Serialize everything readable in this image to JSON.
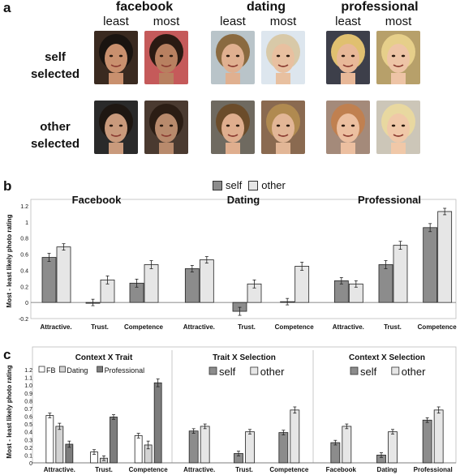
{
  "panel_a": {
    "letter": "a",
    "contexts": [
      "facebook",
      "dating",
      "professional"
    ],
    "col_labels": [
      "least",
      "most"
    ],
    "rows": [
      {
        "label_line1": "self",
        "label_line2": "selected"
      },
      {
        "label_line1": "other",
        "label_line2": "selected"
      }
    ]
  },
  "panel_b": {
    "letter": "b",
    "legend": [
      "self",
      "other"
    ]
  },
  "panel_c": {
    "letter": "c"
  },
  "colors": {
    "self": "#8c8c8c",
    "other": "#e6e6e6",
    "fb": "#ffffff",
    "dating": "#d3d3d3",
    "professional": "#7d7d7d"
  },
  "chart_data": [
    {
      "type": "bar",
      "panel": "b",
      "ylabel": "Most - least likely photo rating",
      "ylim": [
        -0.2,
        1.2
      ],
      "yticks": [
        "-0.2",
        "0",
        "0.2",
        "0.4",
        "0.6",
        "0.8",
        "1",
        "1.2"
      ],
      "groups": [
        {
          "title": "Facebook",
          "categories": [
            "Attractive.",
            "Trust.",
            "Competence"
          ],
          "series": [
            {
              "name": "self",
              "values": [
                0.56,
                0.0,
                0.24
              ],
              "err": [
                0.05,
                0.04,
                0.05
              ]
            },
            {
              "name": "other",
              "values": [
                0.69,
                0.28,
                0.47
              ],
              "err": [
                0.04,
                0.05,
                0.05
              ]
            }
          ]
        },
        {
          "title": "Dating",
          "categories": [
            "Attractive.",
            "Trust.",
            "Competence"
          ],
          "series": [
            {
              "name": "self",
              "values": [
                0.42,
                -0.11,
                0.01
              ],
              "err": [
                0.04,
                0.05,
                0.04
              ]
            },
            {
              "name": "other",
              "values": [
                0.53,
                0.23,
                0.45
              ],
              "err": [
                0.04,
                0.05,
                0.05
              ]
            }
          ]
        },
        {
          "title": "Professional",
          "categories": [
            "Attractive.",
            "Trust.",
            "Competence"
          ],
          "series": [
            {
              "name": "self",
              "values": [
                0.27,
                0.47,
                0.93
              ],
              "err": [
                0.04,
                0.05,
                0.05
              ]
            },
            {
              "name": "other",
              "values": [
                0.23,
                0.71,
                1.13
              ],
              "err": [
                0.04,
                0.05,
                0.04
              ]
            }
          ]
        }
      ]
    },
    {
      "type": "bar",
      "panel": "c",
      "ylabel": "Most - least likely photo rating",
      "ylim": [
        0,
        1.2
      ],
      "yticks": [
        "0",
        "0.1",
        "0.2",
        "0.3",
        "0.4",
        "0.5",
        "0.6",
        "0.7",
        "0.8",
        "0.9",
        "1.0",
        "1.1",
        "1.2"
      ],
      "groups": [
        {
          "title": "Context X Trait",
          "legend": [
            "FB",
            "Dating",
            "Professional"
          ],
          "categories": [
            "Attractive.",
            "Trust.",
            "Competence"
          ],
          "series": [
            {
              "name": "FB",
              "values": [
                0.61,
                0.14,
                0.35
              ],
              "err": [
                0.03,
                0.03,
                0.03
              ]
            },
            {
              "name": "Dating",
              "values": [
                0.47,
                0.06,
                0.23
              ],
              "err": [
                0.04,
                0.03,
                0.05
              ]
            },
            {
              "name": "Professional",
              "values": [
                0.24,
                0.59,
                1.03
              ],
              "err": [
                0.04,
                0.03,
                0.05
              ]
            }
          ]
        },
        {
          "title": "Trait X Selection",
          "legend": [
            "self",
            "other"
          ],
          "categories": [
            "Attractive.",
            "Trust.",
            "Competence"
          ],
          "series": [
            {
              "name": "self",
              "values": [
                0.41,
                0.12,
                0.39
              ],
              "err": [
                0.03,
                0.03,
                0.03
              ]
            },
            {
              "name": "other",
              "values": [
                0.47,
                0.4,
                0.68
              ],
              "err": [
                0.03,
                0.03,
                0.04
              ]
            }
          ]
        },
        {
          "title": "Context X Selection",
          "legend": [
            "self",
            "other"
          ],
          "categories": [
            "Facebook",
            "Dating",
            "Professional"
          ],
          "series": [
            {
              "name": "self",
              "values": [
                0.26,
                0.1,
                0.55
              ],
              "err": [
                0.03,
                0.03,
                0.03
              ]
            },
            {
              "name": "other",
              "values": [
                0.47,
                0.4,
                0.68
              ],
              "err": [
                0.03,
                0.03,
                0.04
              ]
            }
          ]
        }
      ]
    }
  ]
}
